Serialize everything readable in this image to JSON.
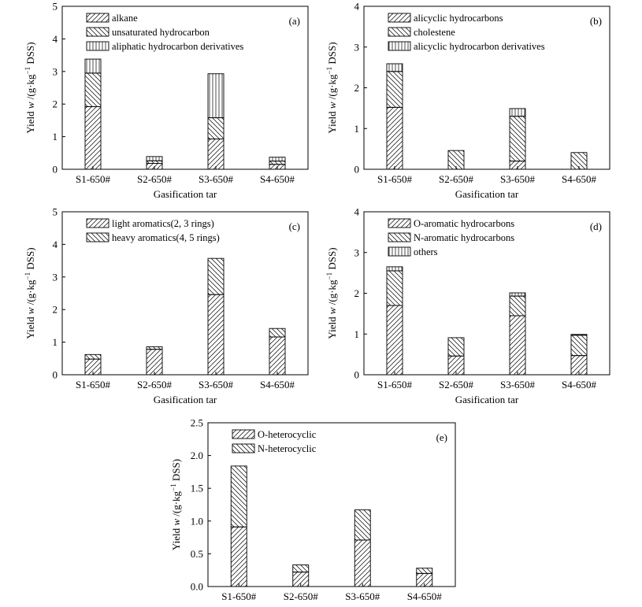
{
  "chart_data": [
    {
      "type": "bar",
      "panel": "(a)",
      "stacked": true,
      "categories": [
        "S1-650#",
        "S2-650#",
        "S3-650#",
        "S4-650#"
      ],
      "series": [
        {
          "name": "alkane",
          "pattern": "diag-right",
          "values": [
            1.92,
            0.18,
            0.93,
            0.15
          ]
        },
        {
          "name": "unsaturated hydrocarbon",
          "pattern": "diag-left",
          "values": [
            1.03,
            0.08,
            0.65,
            0.1
          ]
        },
        {
          "name": "aliphatic hydrocarbon derivatives",
          "pattern": "vertical",
          "values": [
            0.43,
            0.13,
            1.35,
            0.12
          ]
        }
      ],
      "xlabel": "Gasification tar",
      "ylabel_prefix": "Yield",
      "ylabel_var": "w",
      "ylabel_unit": "/(g·kg",
      "ylabel_sup": "−1",
      "ylabel_tail": " DSS)",
      "ylim": [
        0,
        5
      ],
      "yticks": [
        "0",
        "1",
        "2",
        "3",
        "4",
        "5"
      ],
      "legend_position": "top-left",
      "grid": false
    },
    {
      "type": "bar",
      "panel": "(b)",
      "stacked": true,
      "categories": [
        "S1-650#",
        "S2-650#",
        "S3-650#",
        "S4-650#"
      ],
      "series": [
        {
          "name": "alicyclic hydrocarbons",
          "pattern": "diag-right",
          "values": [
            1.52,
            0.0,
            0.2,
            0.0
          ]
        },
        {
          "name": "cholestene",
          "pattern": "diag-left",
          "values": [
            0.88,
            0.46,
            1.1,
            0.41
          ]
        },
        {
          "name": "alicyclic hydrocarbon derivatives",
          "pattern": "vertical",
          "values": [
            0.19,
            0.0,
            0.19,
            0.0
          ]
        }
      ],
      "xlabel": "Gasification tar",
      "ylabel_prefix": "Yield",
      "ylabel_var": "w",
      "ylabel_unit": "/(g·kg",
      "ylabel_sup": "−1",
      "ylabel_tail": " DSS)",
      "ylim": [
        0,
        4
      ],
      "yticks": [
        "0",
        "1",
        "2",
        "3",
        "4"
      ],
      "legend_position": "top-left",
      "grid": false
    },
    {
      "type": "bar",
      "panel": "(c)",
      "stacked": true,
      "categories": [
        "S1-650#",
        "S2-650#",
        "S3-650#",
        "S4-650#"
      ],
      "series": [
        {
          "name": "light aromatics(2, 3 rings)",
          "pattern": "diag-right",
          "values": [
            0.48,
            0.78,
            2.46,
            1.16
          ]
        },
        {
          "name": "heavy aromatics(4, 5 rings)",
          "pattern": "diag-left",
          "values": [
            0.14,
            0.08,
            1.11,
            0.26
          ]
        }
      ],
      "xlabel": "Gasification tar",
      "ylabel_prefix": "Yield",
      "ylabel_var": "w",
      "ylabel_unit": "/(g·kg",
      "ylabel_sup": "−1",
      "ylabel_tail": " DSS)",
      "ylim": [
        0,
        5
      ],
      "yticks": [
        "0",
        "1",
        "2",
        "3",
        "4",
        "5"
      ],
      "legend_position": "top-left",
      "grid": false
    },
    {
      "type": "bar",
      "panel": "(d)",
      "stacked": true,
      "categories": [
        "S1-650#",
        "S2-650#",
        "S3-650#",
        "S4-650#"
      ],
      "series": [
        {
          "name": "O-aromatic hydrocarbons",
          "pattern": "diag-right",
          "values": [
            1.7,
            0.46,
            1.45,
            0.47
          ]
        },
        {
          "name": "N-aromatic hydrocarbons",
          "pattern": "diag-left",
          "values": [
            0.85,
            0.45,
            0.48,
            0.5
          ]
        },
        {
          "name": "others",
          "pattern": "vertical",
          "values": [
            0.1,
            0.0,
            0.08,
            0.02
          ]
        }
      ],
      "xlabel": "Gasification tar",
      "ylabel_prefix": "Yield",
      "ylabel_var": "w",
      "ylabel_unit": "/(g·kg",
      "ylabel_sup": "−1",
      "ylabel_tail": " DSS)",
      "ylim": [
        0,
        4
      ],
      "yticks": [
        "0",
        "1",
        "2",
        "3",
        "4"
      ],
      "legend_position": "top-left",
      "grid": false
    },
    {
      "type": "bar",
      "panel": "(e)",
      "stacked": true,
      "categories": [
        "S1-650#",
        "S2-650#",
        "S3-650#",
        "S4-650#"
      ],
      "series": [
        {
          "name": "O-heterocyclic",
          "pattern": "diag-right",
          "values": [
            0.91,
            0.22,
            0.71,
            0.2
          ]
        },
        {
          "name": "N-heterocyclic",
          "pattern": "diag-left",
          "values": [
            0.93,
            0.11,
            0.46,
            0.08
          ]
        }
      ],
      "xlabel": "",
      "ylabel_prefix": "Yield",
      "ylabel_var": "w",
      "ylabel_unit": "/(g·kg",
      "ylabel_sup": "−1",
      "ylabel_tail": " DSS)",
      "ylim": [
        0,
        2.5
      ],
      "yticks": [
        "0.0",
        "0.5",
        "1.0",
        "1.5",
        "2.0",
        "2.5"
      ],
      "legend_position": "top-left",
      "grid": false
    }
  ],
  "colors": {
    "ink": "#000000",
    "bar_fill": "#ffffff",
    "background": "#ffffff"
  }
}
